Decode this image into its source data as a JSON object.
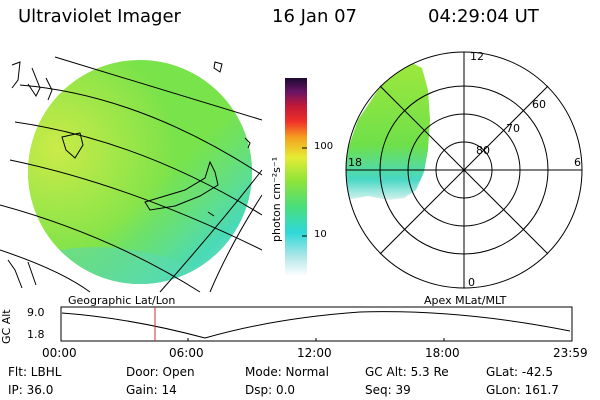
{
  "header": {
    "title": "Ultraviolet Imager",
    "date": "16 Jan 07",
    "time": "04:29:04 UT"
  },
  "colorbar": {
    "unit_label": "photon cm⁻²s⁻¹",
    "ticks": [
      "100",
      "10"
    ]
  },
  "polar": {
    "mlt_labels": [
      "12",
      "18",
      "6",
      "0"
    ],
    "lat_labels": [
      "60",
      "70",
      "80"
    ]
  },
  "panels": {
    "left_caption": "Geographic Lat/Lon",
    "right_caption": "Apex MLat/MLT"
  },
  "altitude_plot": {
    "axis_label": "GC Alt",
    "y_ticks": [
      "9.0",
      "1.8"
    ],
    "time_ticks": [
      "00:00",
      "06:00",
      "12:00",
      "18:00",
      "23:59"
    ]
  },
  "info": {
    "filter": "Flt: LBHL",
    "door": "Door: Open",
    "mode": "Mode: Normal",
    "gc_alt": "GC Alt: 5.3 Re",
    "glat": "GLat: -42.5",
    "ip": "IP: 36.0",
    "gain": "Gain: 14",
    "dsp": "Dsp:    0.0",
    "seq": "Seq: 39",
    "glon": "GLon: 161.7"
  },
  "colors": {
    "image_green": "#7fe43c",
    "image_yellow": "#d9ec3a",
    "image_cyan": "#38d6c8",
    "marker_red": "#c8323c"
  }
}
